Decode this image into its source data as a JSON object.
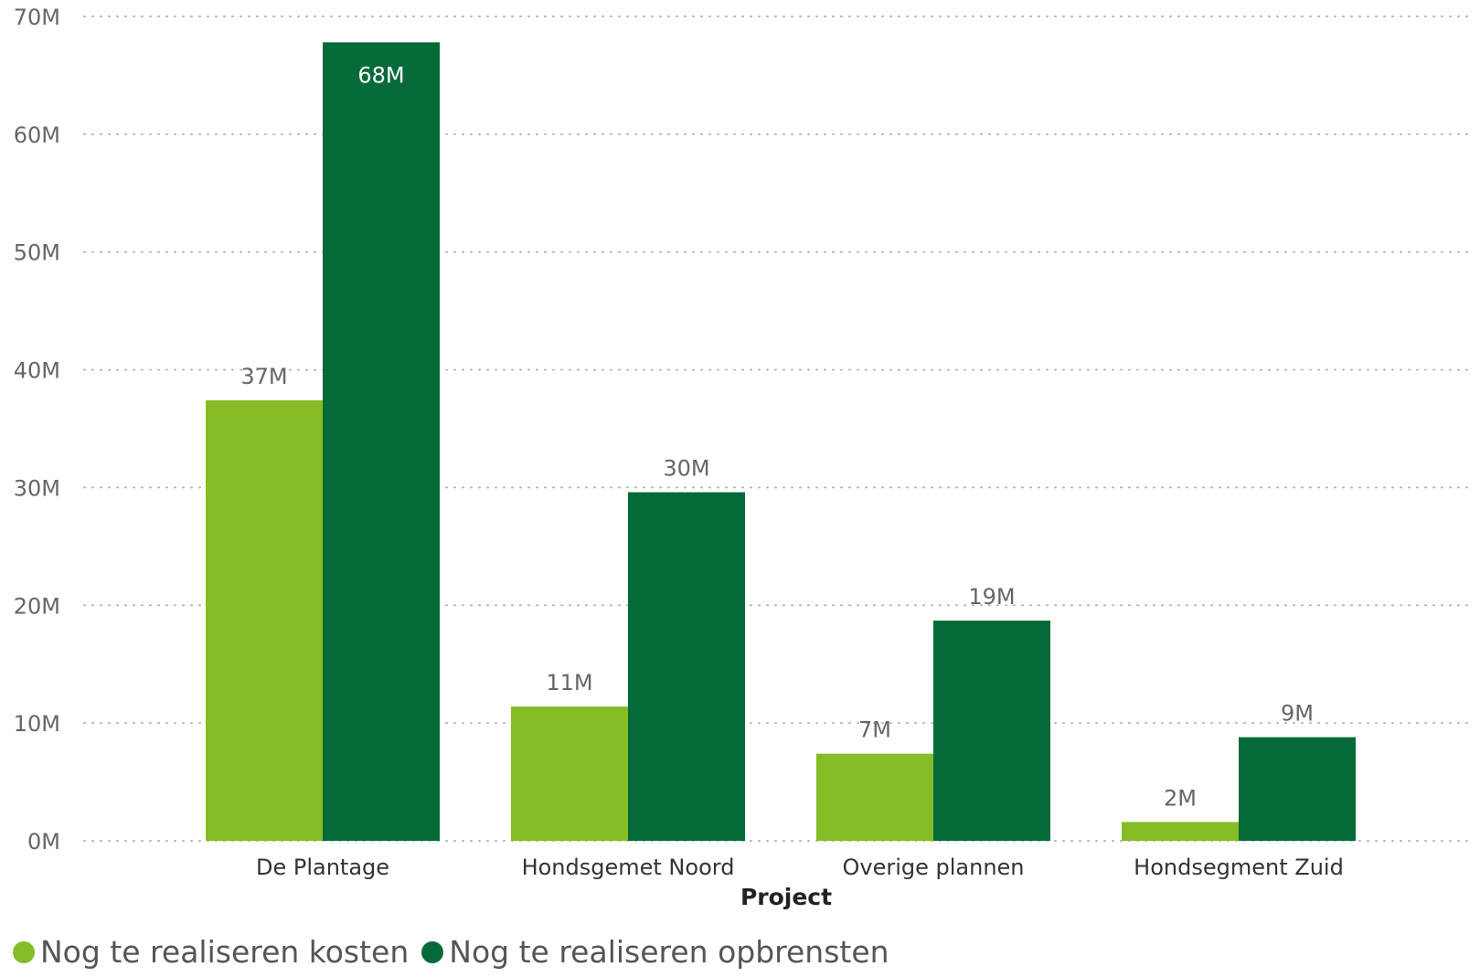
{
  "chart_data": {
    "type": "bar",
    "categories": [
      "De Plantage",
      "Hondsgemet Noord",
      "Overige plannen",
      "Hondsegment Zuid"
    ],
    "series": [
      {
        "name": "Nog te realiseren kosten",
        "values": [
          37.4,
          11.4,
          7.4,
          1.6
        ],
        "labels": [
          "37M",
          "11M",
          "7M",
          "2M"
        ],
        "color": "#86bc25",
        "label_color": "#666666"
      },
      {
        "name": "Nog te realiseren opbrensten",
        "values": [
          67.8,
          29.6,
          18.7,
          8.8
        ],
        "labels": [
          "68M",
          "30M",
          "19M",
          "9M"
        ],
        "color": "#046a38",
        "label_color": "#666666",
        "inside_label_color": "#ffffff"
      }
    ],
    "xlabel": "Project",
    "ylabel": "",
    "ylim": [
      0,
      70
    ],
    "yticks": [
      0,
      10,
      20,
      30,
      40,
      50,
      60,
      70
    ],
    "ytick_labels": [
      "0M",
      "10M",
      "20M",
      "30M",
      "40M",
      "50M",
      "60M",
      "70M"
    ],
    "grid": true,
    "legend_position": "bottom-left"
  }
}
